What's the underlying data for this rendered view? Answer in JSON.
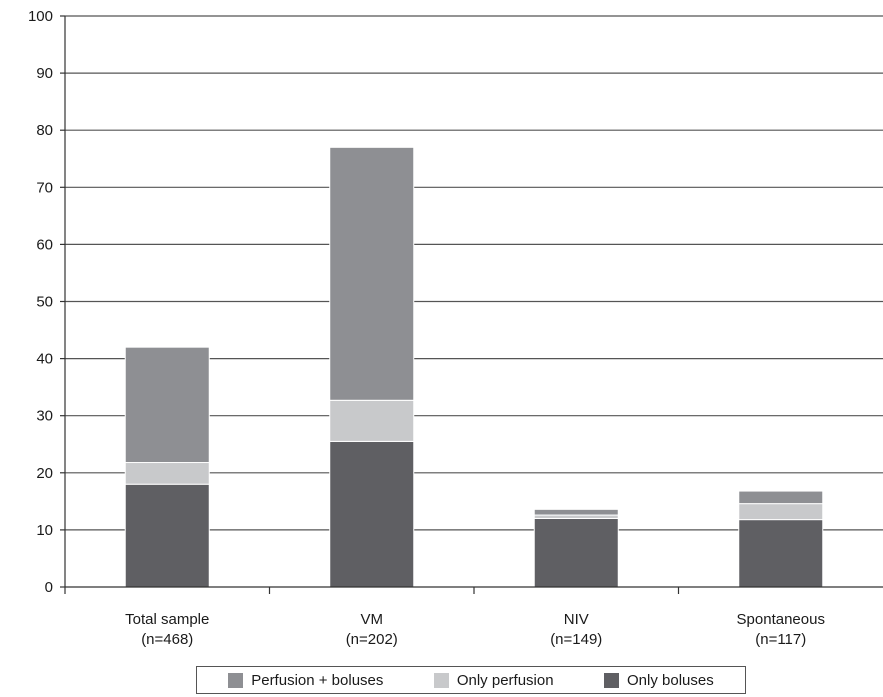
{
  "chart_data": {
    "type": "bar",
    "stacked": true,
    "categories": [
      [
        "Total sample",
        "(n=468)"
      ],
      [
        "VM",
        "(n=202)"
      ],
      [
        "NIV",
        "(n=149)"
      ],
      [
        "Spontaneous",
        "(n=117)"
      ]
    ],
    "series": [
      {
        "name": "Only boluses",
        "color": "#5f5f63",
        "values": [
          18,
          25.5,
          12,
          11.8
        ]
      },
      {
        "name": "Only perfusion",
        "color": "#c8c9cb",
        "values": [
          3.8,
          7.2,
          0.6,
          2.8
        ]
      },
      {
        "name": "Perfusion + boluses",
        "color": "#8e8f93",
        "values": [
          20.2,
          44.3,
          1.0,
          2.2
        ]
      }
    ],
    "ylim": [
      0,
      100
    ],
    "yticks": [
      0,
      10,
      20,
      30,
      40,
      50,
      60,
      70,
      80,
      90,
      100
    ],
    "grid": true,
    "legend": {
      "position": "bottom",
      "order": [
        "Perfusion + boluses",
        "Only perfusion",
        "Only boluses"
      ]
    }
  }
}
